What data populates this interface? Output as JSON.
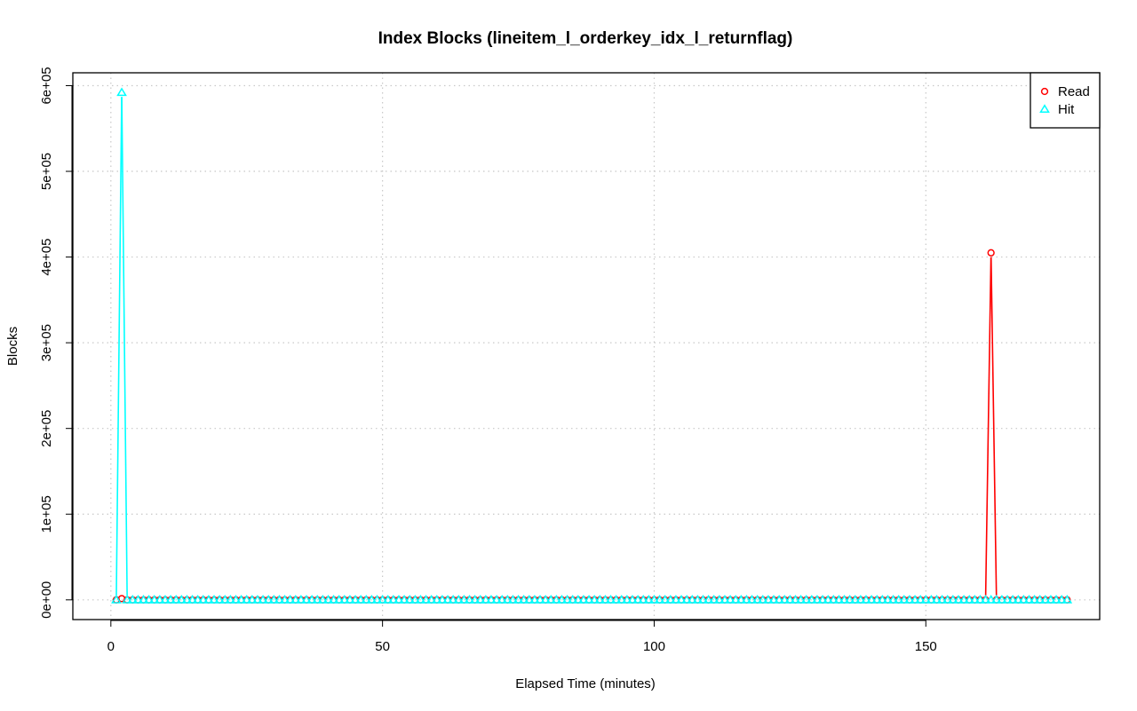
{
  "chart_data": {
    "type": "line",
    "title": "Index Blocks (lineitem_l_orderkey_idx_l_returnflag)",
    "xlabel": "Elapsed Time (minutes)",
    "ylabel": "Blocks",
    "xlim": [
      -7,
      182
    ],
    "ylim": [
      -23000,
      615000
    ],
    "x_ticks": [
      0,
      50,
      100,
      150
    ],
    "y_ticks": [
      0,
      100000,
      200000,
      300000,
      400000,
      500000,
      600000
    ],
    "x_tick_labels": [
      "0",
      "50",
      "100",
      "150"
    ],
    "y_tick_labels": [
      "0e+00",
      "1e+05",
      "2e+05",
      "3e+05",
      "4e+05",
      "5e+05",
      "6e+05"
    ],
    "grid": true,
    "legend_position": "top-right",
    "x_start": 1,
    "x_end": 176,
    "series": [
      {
        "name": "Read",
        "color": "#ff0000",
        "marker": "circle",
        "baseline": 0,
        "spikes": [
          {
            "x": 2,
            "y": 1500
          },
          {
            "x": 162,
            "y": 405000
          }
        ]
      },
      {
        "name": "Hit",
        "color": "#00ffff",
        "marker": "triangle",
        "baseline": 0,
        "spikes": [
          {
            "x": 2,
            "y": 592000
          }
        ]
      }
    ]
  }
}
